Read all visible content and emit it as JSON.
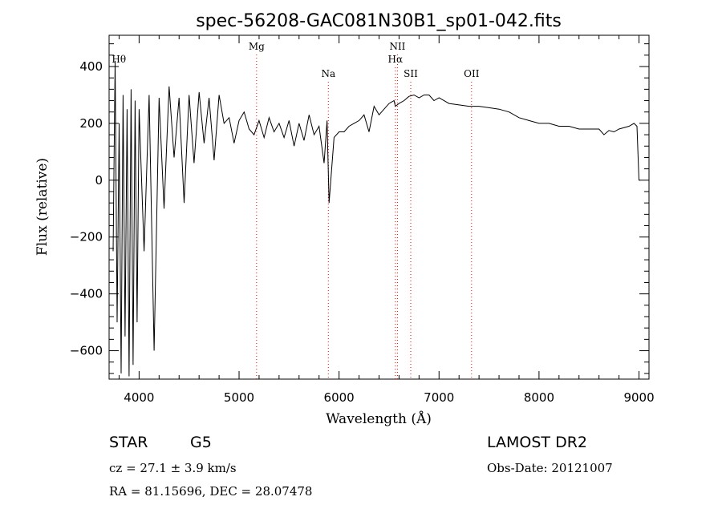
{
  "chart_data": {
    "type": "line",
    "title": "spec-56208-GAC081N30B1_sp01-042.fits",
    "xlabel": "Wavelength (Å)",
    "ylabel": "Flux (relative)",
    "xlim": [
      3700,
      9100
    ],
    "ylim": [
      -700,
      510
    ],
    "xticks": [
      4000,
      5000,
      6000,
      7000,
      8000,
      9000
    ],
    "yticks": [
      -600,
      -400,
      -200,
      0,
      200,
      400
    ],
    "line_color": "#000000",
    "marker_color": "#ff0000",
    "grid": false,
    "series": [
      {
        "x": [
          3740,
          3760,
          3780,
          3800,
          3820,
          3840,
          3860,
          3880,
          3900,
          3920,
          3940,
          3960,
          3980,
          4000,
          4050,
          4100,
          4150,
          4200,
          4250,
          4300,
          4350,
          4400,
          4450,
          4500,
          4550,
          4600,
          4650,
          4700,
          4750,
          4800,
          4850,
          4900,
          4950,
          5000,
          5050,
          5100,
          5150,
          5200,
          5250,
          5300,
          5350,
          5400,
          5450,
          5500,
          5550,
          5600,
          5650,
          5700,
          5750,
          5800,
          5850,
          5880,
          5900,
          5950,
          6000,
          6050,
          6100,
          6150,
          6200,
          6250,
          6300,
          6350,
          6400,
          6450,
          6500,
          6550,
          6563,
          6600,
          6650,
          6700,
          6750,
          6800,
          6850,
          6900,
          6950,
          7000,
          7100,
          7200,
          7300,
          7400,
          7500,
          7600,
          7700,
          7800,
          7900,
          8000,
          8100,
          8200,
          8300,
          8400,
          8500,
          8600,
          8650,
          8700,
          8750,
          8800,
          8900,
          8950,
          8980,
          9000,
          9010
        ],
        "y": [
          -250,
          420,
          -500,
          200,
          -680,
          300,
          -550,
          250,
          -690,
          320,
          -650,
          280,
          -500,
          250,
          -250,
          300,
          -600,
          290,
          -100,
          330,
          80,
          290,
          -80,
          300,
          60,
          310,
          130,
          290,
          70,
          300,
          200,
          220,
          130,
          210,
          240,
          180,
          160,
          210,
          150,
          220,
          170,
          200,
          150,
          210,
          120,
          200,
          140,
          230,
          160,
          190,
          60,
          210,
          -80,
          150,
          170,
          170,
          190,
          200,
          210,
          230,
          170,
          260,
          230,
          250,
          270,
          280,
          260,
          270,
          280,
          295,
          300,
          290,
          300,
          300,
          280,
          290,
          270,
          265,
          260,
          260,
          255,
          250,
          240,
          220,
          210,
          200,
          200,
          190,
          190,
          180,
          180,
          180,
          160,
          175,
          170,
          180,
          190,
          200,
          190,
          0,
          0
        ]
      }
    ],
    "line_markers": [
      {
        "label": "Hθ",
        "wavelength": 3798
      },
      {
        "label": "Mg",
        "wavelength": 5175
      },
      {
        "label": "Na",
        "wavelength": 5893
      },
      {
        "label": "NII",
        "wavelength": 6584
      },
      {
        "label": "Hα",
        "wavelength": 6563
      },
      {
        "label": "SII",
        "wavelength": 6717
      },
      {
        "label": "OII",
        "wavelength": 7325
      }
    ]
  },
  "info": {
    "class": "STAR",
    "subclass": "G5",
    "survey": "LAMOST DR2",
    "cz": "cz = 27.1 ± 3.9 km/s",
    "obs_date": "Obs-Date: 20121007",
    "coords": "RA =  81.15696, DEC =  28.07478"
  }
}
